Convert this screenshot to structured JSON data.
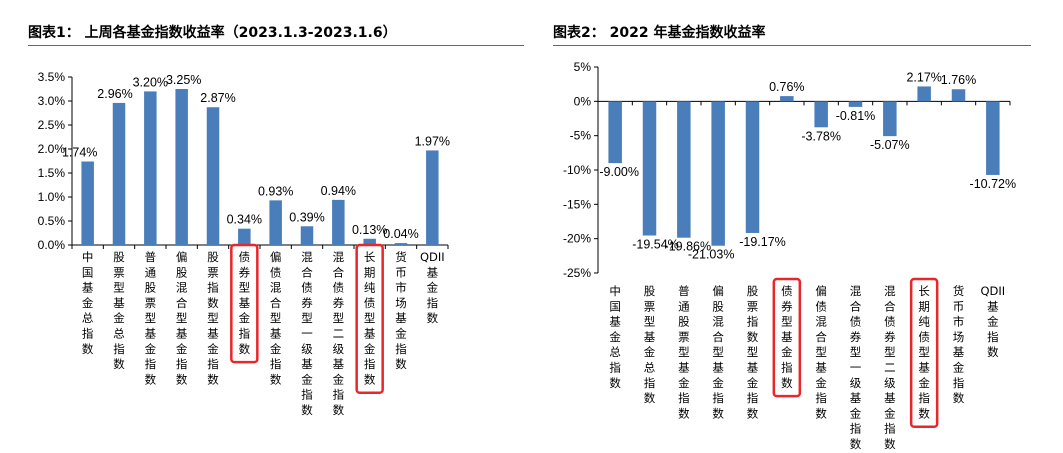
{
  "charts": [
    {
      "panel_title": "图表1： 上周各基金指数收益率（2023.1.3-2023.1.6）",
      "chart_data": {
        "type": "bar",
        "categories": [
          "中国基金总指数",
          "股票型基金总指数",
          "普通股票型基金指数",
          "偏股混合型基金指数",
          "股票指数型基金指数",
          "债券型基金指数",
          "偏债混合型基金指数",
          "混合债券型一级基金指数",
          "混合债券型二级基金指数",
          "长期纯债型基金指数",
          "货币市场基金指数",
          "QDII基金指数"
        ],
        "values": [
          1.74,
          2.96,
          3.2,
          3.25,
          2.87,
          0.34,
          0.93,
          0.39,
          0.94,
          0.13,
          0.04,
          1.97
        ],
        "data_labels": [
          "1.74%",
          "2.96%",
          "3.20%",
          "3.25%",
          "2.87%",
          "0.34%",
          "0.93%",
          "0.39%",
          "0.94%",
          "0.13%",
          "0.04%",
          "1.97%"
        ],
        "y_ticks": [
          "0.0%",
          "0.5%",
          "1.0%",
          "1.5%",
          "2.0%",
          "2.5%",
          "3.0%",
          "3.5%"
        ],
        "ylim": [
          0,
          3.5
        ],
        "highlighted": [
          "债券型基金指数",
          "长期纯债型基金指数"
        ],
        "bar_color": "#4a7ebb",
        "highlight_color": "#e8262b"
      }
    },
    {
      "panel_title": "图表2： 2022 年基金指数收益率",
      "chart_data": {
        "type": "bar",
        "categories": [
          "中国基金总指数",
          "股票型基金总指数",
          "普通股票型基金指数",
          "偏股混合型基金指数",
          "股票指数型基金指数",
          "债券型基金指数",
          "偏债混合型基金指数",
          "混合债券型一级基金指数",
          "混合债券型二级基金指数",
          "长期纯债型基金指数",
          "货币市场基金指数",
          "QDII基金指数"
        ],
        "values": [
          -9.0,
          -19.54,
          -19.86,
          -21.03,
          -19.17,
          0.76,
          -3.78,
          -0.81,
          -5.07,
          2.17,
          1.76,
          -10.72
        ],
        "data_labels": [
          "-9.00%",
          "-19.54%",
          "-19.86%",
          "-21.03%",
          "-19.17%",
          "0.76%",
          "-3.78%",
          "-0.81%",
          "-5.07%",
          "2.17%",
          "1.76%",
          "-10.72%"
        ],
        "y_ticks": [
          "-25%",
          "-20%",
          "-15%",
          "-10%",
          "-5%",
          "0%",
          "5%"
        ],
        "ylim": [
          -25,
          5
        ],
        "highlighted": [
          "债券型基金指数",
          "长期纯债型基金指数"
        ],
        "bar_color": "#4a7ebb",
        "highlight_color": "#e8262b"
      }
    }
  ]
}
